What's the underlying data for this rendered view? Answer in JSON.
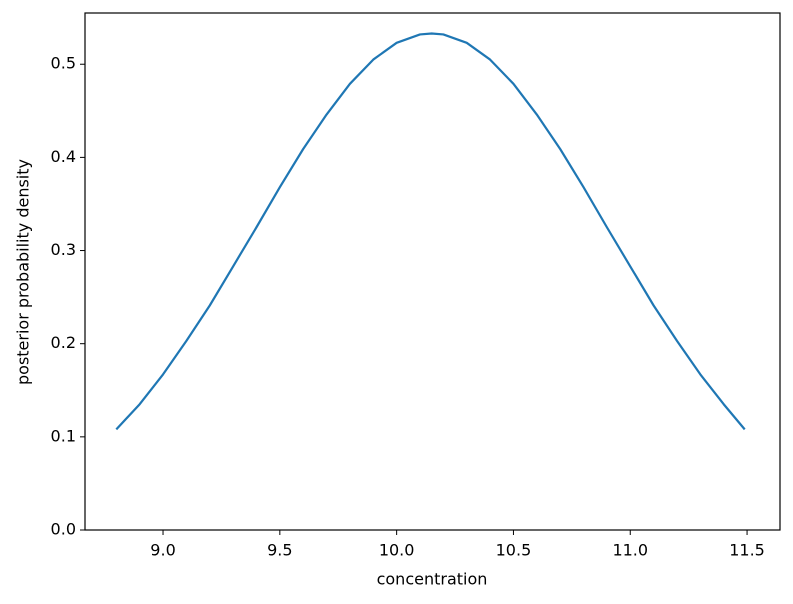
{
  "chart_data": {
    "type": "line",
    "xlabel": "concentration",
    "ylabel": "posterior probability density",
    "x": [
      8.8,
      8.9,
      9.0,
      9.1,
      9.2,
      9.3,
      9.4,
      9.5,
      9.6,
      9.7,
      9.8,
      9.9,
      10.0,
      10.1,
      10.15,
      10.2,
      10.3,
      10.4,
      10.5,
      10.6,
      10.7,
      10.8,
      10.9,
      11.0,
      11.1,
      11.2,
      11.3,
      11.4,
      11.49
    ],
    "values": [
      0.108,
      0.135,
      0.167,
      0.203,
      0.241,
      0.283,
      0.325,
      0.368,
      0.409,
      0.446,
      0.479,
      0.505,
      0.523,
      0.532,
      0.533,
      0.532,
      0.523,
      0.505,
      0.479,
      0.446,
      0.409,
      0.368,
      0.325,
      0.283,
      0.241,
      0.203,
      0.167,
      0.135,
      0.108
    ],
    "color": "#1f77b4",
    "xlim": [
      8.666,
      11.641
    ],
    "ylim": [
      0,
      0.555
    ],
    "xticks": [
      {
        "value": 9,
        "label": "9.0"
      },
      9.5,
      {
        "value": 10,
        "label": "10.0"
      },
      10.5,
      {
        "value": 11,
        "label": "11.0"
      },
      11.5
    ],
    "yticks": [
      {
        "value": 0,
        "label": "0.0"
      },
      0.1,
      0.2,
      0.3,
      0.4,
      0.5
    ]
  }
}
